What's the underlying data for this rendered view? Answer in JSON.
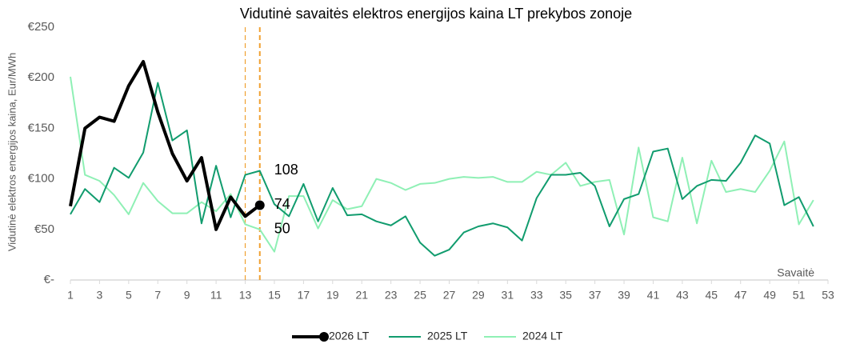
{
  "chart_data": {
    "type": "line",
    "title": "Vidutinė savaitės elektros energijos kaina LT prekybos zonoje",
    "y_label": "Vidutinė elektros energijos kaina, Eur/MWh",
    "x_label": "Savaitė",
    "x": [
      1,
      2,
      3,
      4,
      5,
      6,
      7,
      8,
      9,
      10,
      11,
      12,
      13,
      14,
      15,
      16,
      17,
      18,
      19,
      20,
      21,
      22,
      23,
      24,
      25,
      26,
      27,
      28,
      29,
      30,
      31,
      32,
      33,
      34,
      35,
      36,
      37,
      38,
      39,
      40,
      41,
      42,
      43,
      44,
      45,
      46,
      47,
      48,
      49,
      50,
      51,
      52
    ],
    "series": [
      {
        "name": "2026 LT",
        "color": "#000000",
        "width": 4,
        "marker": true,
        "values": [
          73,
          150,
          161,
          157,
          192,
          216,
          166,
          125,
          98,
          121,
          50,
          82,
          63,
          74,
          null,
          null,
          null,
          null,
          null,
          null,
          null,
          null,
          null,
          null,
          null,
          null,
          null,
          null,
          null,
          null,
          null,
          null,
          null,
          null,
          null,
          null,
          null,
          null,
          null,
          null,
          null,
          null,
          null,
          null,
          null,
          null,
          null,
          null,
          null,
          null,
          null,
          null
        ]
      },
      {
        "name": "2025 LT",
        "color": "#119c6e",
        "width": 2,
        "values": [
          65,
          90,
          77,
          111,
          101,
          126,
          195,
          138,
          148,
          56,
          113,
          62,
          104,
          108,
          75,
          63,
          95,
          58,
          91,
          64,
          65,
          58,
          54,
          63,
          37,
          24,
          30,
          47,
          53,
          56,
          52,
          39,
          81,
          104,
          104,
          106,
          93,
          53,
          80,
          85,
          127,
          130,
          80,
          93,
          99,
          98,
          116,
          143,
          135,
          74,
          82,
          53
        ]
      },
      {
        "name": "2024 LT",
        "color": "#8ff0b5",
        "width": 2,
        "values": [
          201,
          104,
          98,
          84,
          65,
          96,
          78,
          66,
          66,
          77,
          68,
          85,
          55,
          50,
          28,
          83,
          83,
          51,
          79,
          70,
          73,
          100,
          96,
          89,
          95,
          96,
          100,
          102,
          101,
          102,
          97,
          97,
          107,
          104,
          116,
          93,
          97,
          99,
          45,
          131,
          62,
          58,
          121,
          56,
          118,
          87,
          90,
          87,
          108,
          137,
          55,
          79
        ]
      }
    ],
    "value_label_index": 13,
    "reference_lines": [
      13,
      14
    ],
    "reference_color": "#f0a030",
    "xlim": [
      1,
      53
    ],
    "xticks": [
      1,
      3,
      5,
      7,
      9,
      11,
      13,
      15,
      17,
      19,
      21,
      23,
      25,
      27,
      29,
      31,
      33,
      35,
      37,
      39,
      41,
      43,
      45,
      47,
      49,
      51,
      53
    ],
    "ylim": [
      0,
      250
    ],
    "yticks": [
      {
        "value": 0,
        "label": "€-"
      },
      {
        "value": 50,
        "label": "€50"
      },
      {
        "value": 100,
        "label": "€100"
      },
      {
        "value": 150,
        "label": "€150"
      },
      {
        "value": 200,
        "label": "€200"
      },
      {
        "value": 250,
        "label": "€250"
      }
    ],
    "legend": "bottom",
    "grid": false
  }
}
